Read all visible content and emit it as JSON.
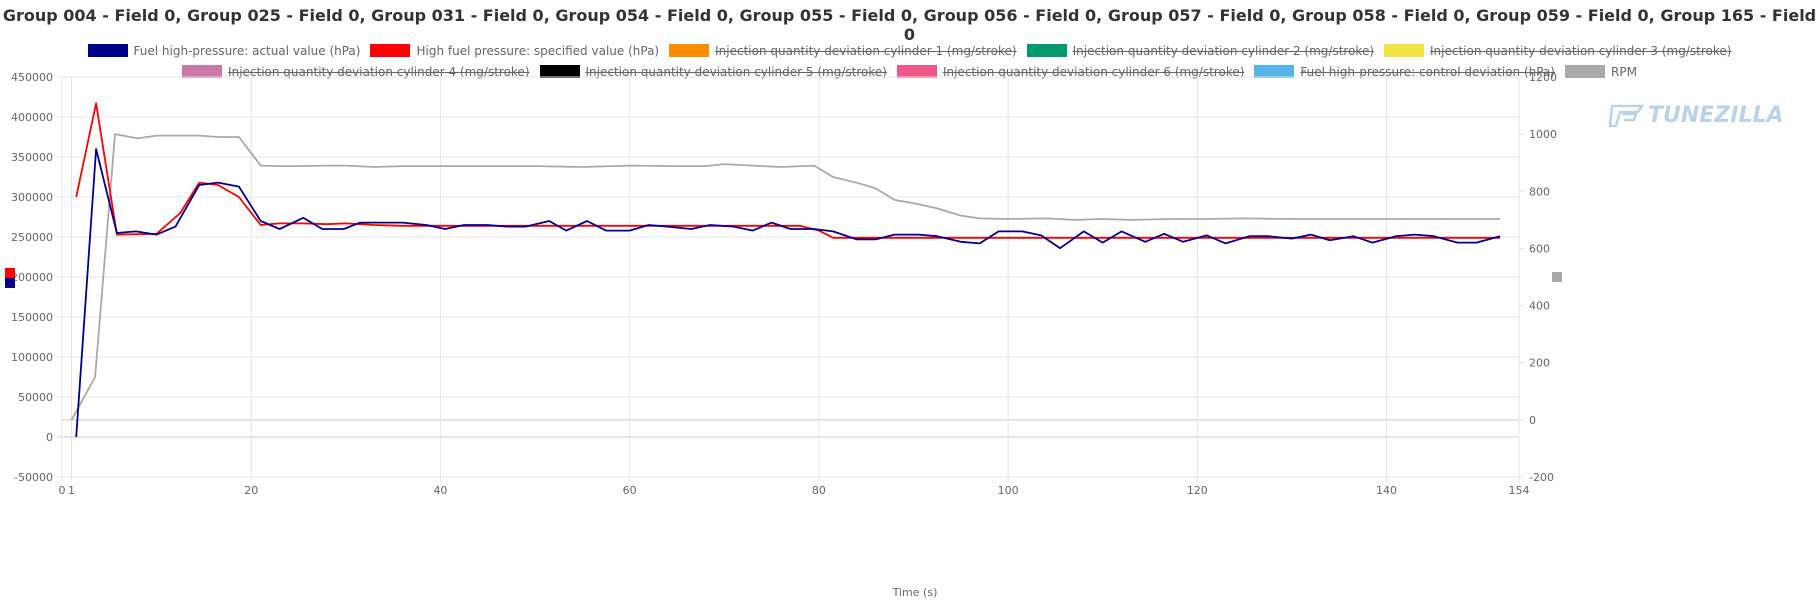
{
  "chart_data": {
    "type": "line",
    "title": "Group 004 - Field 0, Group 025 - Field 0, Group 031 - Field 0, Group 054 - Field 0, Group 055 - Field 0, Group 056 - Field 0, Group 057 - Field 0, Group 058 - Field 0, Group 059 - Field 0, Group 165 - Field 0",
    "xlabel": "Time (s)",
    "xlim": [
      0,
      154
    ],
    "x_ticks": [
      0,
      1,
      20,
      40,
      60,
      80,
      100,
      120,
      140,
      154
    ],
    "y_left": {
      "lim": [
        -50000,
        450000
      ],
      "ticks": [
        -50000,
        0,
        50000,
        100000,
        150000,
        200000,
        250000,
        300000,
        350000,
        400000,
        450000
      ]
    },
    "y_right": {
      "lim": [
        -200,
        1200
      ],
      "ticks": [
        -200,
        0,
        200,
        400,
        600,
        800,
        1000,
        1200
      ]
    },
    "grid": true,
    "legend_position": "top",
    "watermark": "TUNEZILLA",
    "series": [
      {
        "name": "Fuel high-pressure: actual value (hPa)",
        "color": "#00008b",
        "hidden": false,
        "axis": "left",
        "x": [
          1.5,
          3.6,
          5.8,
          7.8,
          10,
          12,
          14.5,
          16.5,
          18.7,
          21,
          23,
          25.5,
          27.5,
          29.8,
          31.5,
          34,
          36,
          38.5,
          40.5,
          42.5,
          45,
          47,
          49,
          51.5,
          53.3,
          55.5,
          57.5,
          60,
          62,
          64,
          66.5,
          68.5,
          71,
          73,
          75,
          77,
          79.5,
          81.5,
          84,
          86,
          88,
          90.5,
          92.5,
          95,
          97,
          99,
          101.5,
          103.5,
          105.5,
          108,
          110,
          112,
          114.5,
          116.5,
          118.5,
          121,
          123,
          125.5,
          127.5,
          130,
          132,
          134,
          136.5,
          138.5,
          141,
          143,
          145,
          147.5,
          149.5,
          152
        ],
        "y": [
          0,
          360000,
          255000,
          257000,
          253000,
          263000,
          315000,
          318000,
          313000,
          270000,
          260000,
          274000,
          260000,
          260000,
          268000,
          268000,
          268000,
          265000,
          260000,
          265000,
          265000,
          263000,
          263000,
          270000,
          258000,
          270000,
          258000,
          258000,
          265000,
          263000,
          260000,
          265000,
          263000,
          258000,
          268000,
          260000,
          260000,
          257000,
          247000,
          247000,
          253000,
          253000,
          251000,
          244000,
          242000,
          257000,
          257000,
          252000,
          236000,
          257000,
          243000,
          257000,
          244000,
          254000,
          244000,
          252000,
          242000,
          251000,
          251000,
          248000,
          253000,
          246000,
          251000,
          243000,
          251000,
          253000,
          251000,
          243000,
          243000,
          251000
        ]
      },
      {
        "name": "High fuel pressure: specified value (hPa)",
        "color": "#ff0000",
        "hidden": false,
        "axis": "left",
        "x": [
          1.5,
          3.6,
          5.8,
          10,
          12.5,
          14.5,
          16.5,
          18.7,
          21,
          23,
          25.5,
          28,
          30,
          33,
          36,
          40,
          45,
          50,
          55,
          60,
          65,
          68,
          72,
          75,
          78,
          80,
          81.5,
          84,
          152
        ],
        "y": [
          300000,
          417000,
          253000,
          254000,
          280000,
          318000,
          315000,
          300000,
          265000,
          267000,
          267000,
          266000,
          267000,
          265000,
          264000,
          264000,
          264000,
          264000,
          264000,
          264000,
          264000,
          264000,
          264000,
          264000,
          264000,
          258000,
          249000,
          249000,
          249000
        ]
      },
      {
        "name": "Injection quantity deviation cylinder 1 (mg/stroke)",
        "color": "#ff8c00",
        "hidden": true
      },
      {
        "name": "Injection quantity deviation cylinder 2 (mg/stroke)",
        "color": "#009a6e",
        "hidden": true
      },
      {
        "name": "Injection quantity deviation cylinder 3 (mg/stroke)",
        "color": "#f0e442",
        "hidden": true
      },
      {
        "name": "Injection quantity deviation cylinder 4 (mg/stroke)",
        "color": "#cc79a7",
        "hidden": true
      },
      {
        "name": "Injection quantity deviation cylinder 5 (mg/stroke)",
        "color": "#000000",
        "hidden": true
      },
      {
        "name": "Injection quantity deviation cylinder 6 (mg/stroke)",
        "color": "#f0588a",
        "hidden": true
      },
      {
        "name": "Fuel high-pressure: control deviation (hPa)",
        "color": "#56b4e9",
        "hidden": true
      },
      {
        "name": "RPM",
        "color": "#a9a9a9",
        "hidden": false,
        "axis": "right",
        "x": [
          1,
          3.5,
          5.6,
          8,
          10,
          12,
          14.5,
          16.5,
          18.7,
          21,
          23,
          25,
          28,
          30,
          33,
          36,
          40,
          45,
          50,
          55,
          60,
          65,
          68,
          70,
          73,
          76,
          79.5,
          81.5,
          84,
          86,
          88,
          90.5,
          92.5,
          95,
          97,
          100,
          104,
          107,
          110,
          113,
          117,
          121,
          125,
          130,
          134,
          138,
          142,
          146,
          150,
          152
        ],
        "y": [
          0,
          150,
          1000,
          985,
          995,
          995,
          995,
          990,
          990,
          890,
          888,
          888,
          890,
          890,
          885,
          888,
          888,
          888,
          888,
          885,
          890,
          888,
          888,
          895,
          890,
          885,
          890,
          850,
          830,
          810,
          770,
          755,
          740,
          715,
          705,
          703,
          705,
          700,
          703,
          700,
          703,
          703,
          705,
          703,
          703,
          703,
          703,
          703,
          703,
          703
        ]
      }
    ]
  }
}
